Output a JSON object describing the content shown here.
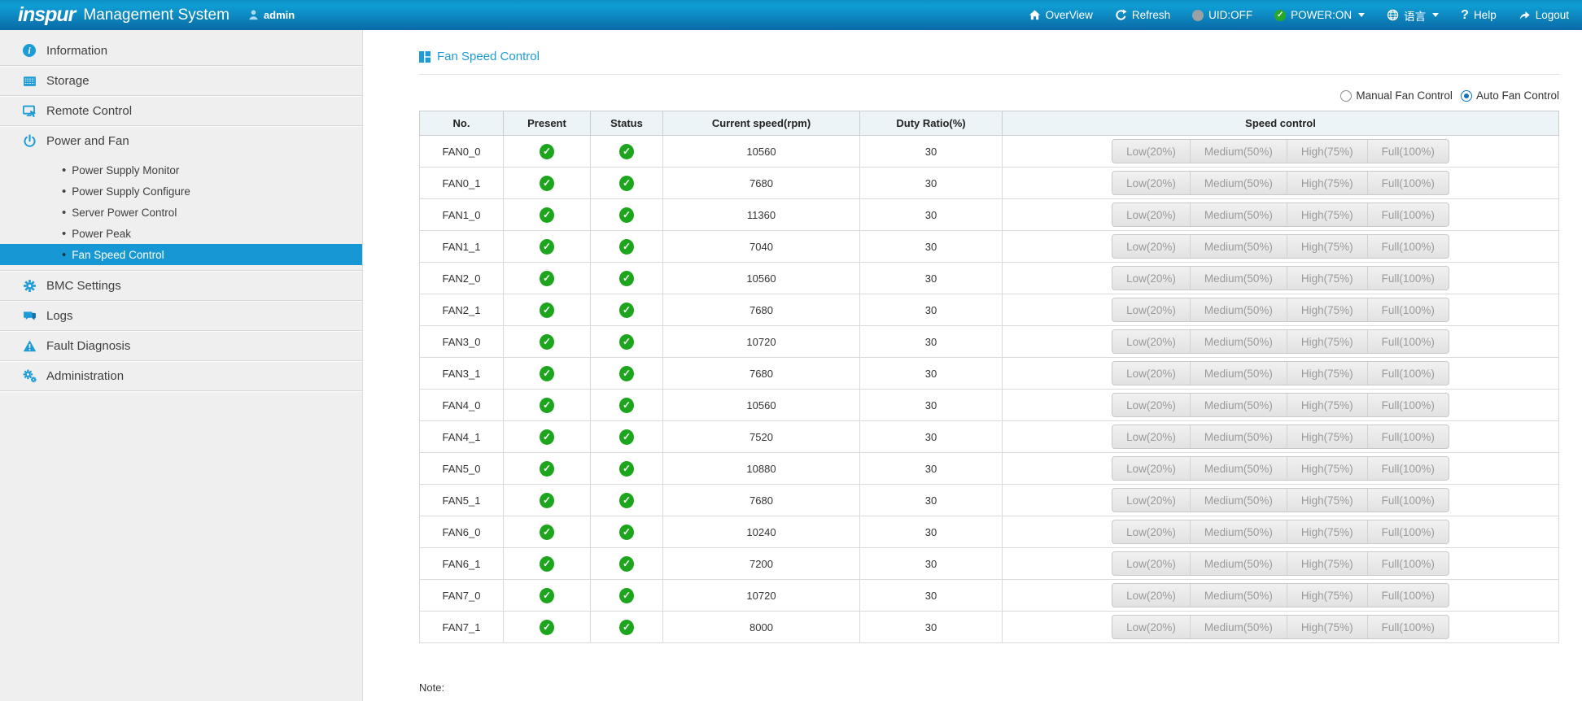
{
  "header": {
    "logo": "inspur",
    "product": "Management System",
    "user": "admin",
    "nav": {
      "overview": "OverView",
      "refresh": "Refresh",
      "uid": "UID:OFF",
      "power": "POWER:ON",
      "language": "语言",
      "help": "Help",
      "help_icon": "?",
      "logout": "Logout"
    }
  },
  "sidebar": {
    "items": [
      {
        "label": "Information",
        "icon": "info-icon"
      },
      {
        "label": "Storage",
        "icon": "storage-icon"
      },
      {
        "label": "Remote Control",
        "icon": "remote-control-icon"
      },
      {
        "label": "Power and Fan",
        "icon": "power-icon",
        "expanded": true,
        "children": [
          "Power Supply Monitor",
          "Power Supply Configure",
          "Server Power Control",
          "Power Peak",
          "Fan Speed Control"
        ],
        "selected_child": "Fan Speed Control"
      },
      {
        "label": "BMC Settings",
        "icon": "gear-icon"
      },
      {
        "label": "Logs",
        "icon": "logs-icon"
      },
      {
        "label": "Fault Diagnosis",
        "icon": "fault-icon"
      },
      {
        "label": "Administration",
        "icon": "admin-gears-icon"
      }
    ],
    "bullet": "•"
  },
  "main": {
    "page_title": "Fan Speed Control",
    "fan_mode": {
      "options": [
        "Manual Fan Control",
        "Auto Fan Control"
      ],
      "selected": "Auto Fan Control"
    },
    "table": {
      "columns": [
        "No.",
        "Present",
        "Status",
        "Current speed(rpm)",
        "Duty Ratio(%)",
        "Speed control"
      ],
      "speed_buttons": [
        "Low(20%)",
        "Medium(50%)",
        "High(75%)",
        "Full(100%)"
      ],
      "ok_glyph": "✓",
      "rows": [
        {
          "no": "FAN0_0",
          "present": "ok",
          "status": "ok",
          "speed": "10560",
          "duty": "30"
        },
        {
          "no": "FAN0_1",
          "present": "ok",
          "status": "ok",
          "speed": "7680",
          "duty": "30"
        },
        {
          "no": "FAN1_0",
          "present": "ok",
          "status": "ok",
          "speed": "11360",
          "duty": "30"
        },
        {
          "no": "FAN1_1",
          "present": "ok",
          "status": "ok",
          "speed": "7040",
          "duty": "30"
        },
        {
          "no": "FAN2_0",
          "present": "ok",
          "status": "ok",
          "speed": "10560",
          "duty": "30"
        },
        {
          "no": "FAN2_1",
          "present": "ok",
          "status": "ok",
          "speed": "7680",
          "duty": "30"
        },
        {
          "no": "FAN3_0",
          "present": "ok",
          "status": "ok",
          "speed": "10720",
          "duty": "30"
        },
        {
          "no": "FAN3_1",
          "present": "ok",
          "status": "ok",
          "speed": "7680",
          "duty": "30"
        },
        {
          "no": "FAN4_0",
          "present": "ok",
          "status": "ok",
          "speed": "10560",
          "duty": "30"
        },
        {
          "no": "FAN4_1",
          "present": "ok",
          "status": "ok",
          "speed": "7520",
          "duty": "30"
        },
        {
          "no": "FAN5_0",
          "present": "ok",
          "status": "ok",
          "speed": "10880",
          "duty": "30"
        },
        {
          "no": "FAN5_1",
          "present": "ok",
          "status": "ok",
          "speed": "7680",
          "duty": "30"
        },
        {
          "no": "FAN6_0",
          "present": "ok",
          "status": "ok",
          "speed": "10240",
          "duty": "30"
        },
        {
          "no": "FAN6_1",
          "present": "ok",
          "status": "ok",
          "speed": "7200",
          "duty": "30"
        },
        {
          "no": "FAN7_0",
          "present": "ok",
          "status": "ok",
          "speed": "10720",
          "duty": "30"
        },
        {
          "no": "FAN7_1",
          "present": "ok",
          "status": "ok",
          "speed": "8000",
          "duty": "30"
        }
      ]
    },
    "note_label": "Note:"
  },
  "colors": {
    "accent_blue": "#1e9cd7",
    "selected_blue": "#1798d5",
    "ok_green": "#1ea51e",
    "power_on_green": "#28a828",
    "uid_off_gray": "#9aa1a4",
    "disabled_button_text": "#9a9a9a"
  }
}
